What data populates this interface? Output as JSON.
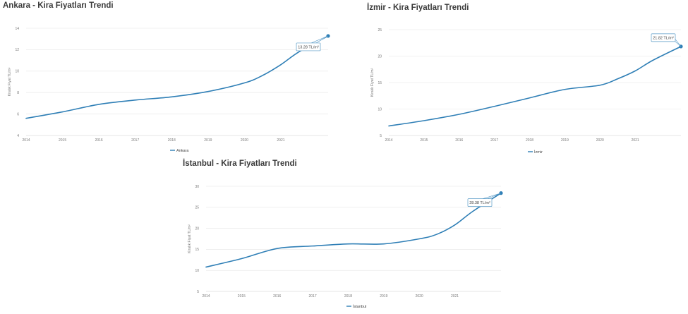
{
  "colors": {
    "line": "#2f7fb6",
    "grid": "#e6e6e6",
    "axis": "#cccccc"
  },
  "chart_data": [
    {
      "type": "line",
      "title": "Ankara - Kira Fiyatları Trendi",
      "xlabel": "",
      "ylabel": "Kiralık Fiyat TL/m²",
      "xlim": [
        2014,
        2022.3
      ],
      "ylim": [
        4,
        14
      ],
      "yticks": [
        4,
        6,
        8,
        10,
        12,
        14
      ],
      "xticks": [
        2014,
        2015,
        2016,
        2017,
        2018,
        2019,
        2020,
        2021
      ],
      "grid": true,
      "legend": "bottom",
      "series": [
        {
          "name": "Ankara",
          "x": [
            2014,
            2015,
            2016,
            2017,
            2018,
            2019,
            2020,
            2020.5,
            2021,
            2021.5,
            2022.3
          ],
          "y": [
            5.6,
            6.2,
            6.9,
            7.3,
            7.6,
            8.1,
            8.9,
            9.6,
            10.6,
            11.8,
            13.28
          ]
        }
      ],
      "annotation": {
        "text": "13.28 TL/m²",
        "x": 2022.3,
        "y": 13.28
      }
    },
    {
      "type": "line",
      "title": "İzmir - Kira Fiyatları Trendi",
      "xlabel": "",
      "ylabel": "Kiralık Fiyat TL/m²",
      "xlim": [
        2014,
        2022.3
      ],
      "ylim": [
        5,
        25
      ],
      "yticks": [
        5,
        10,
        15,
        20,
        25
      ],
      "xticks": [
        2014,
        2015,
        2016,
        2017,
        2018,
        2019,
        2020,
        2021
      ],
      "grid": true,
      "legend": "bottom",
      "series": [
        {
          "name": "İzmir",
          "x": [
            2014,
            2015,
            2016,
            2017,
            2018,
            2019,
            2020,
            2020.5,
            2021,
            2021.5,
            2022.3
          ],
          "y": [
            6.8,
            7.8,
            9.0,
            10.5,
            12.1,
            13.7,
            14.5,
            15.7,
            17.2,
            19.2,
            21.82
          ]
        }
      ],
      "annotation": {
        "text": "21.82 TL/m²",
        "x": 2022.3,
        "y": 21.82
      }
    },
    {
      "type": "line",
      "title": "İstanbul - Kira Fiyatları Trendi",
      "xlabel": "",
      "ylabel": "Kiralık Fiyat TL/m²",
      "xlim": [
        2014,
        2022.3
      ],
      "ylim": [
        5,
        30
      ],
      "yticks": [
        5,
        10,
        15,
        20,
        25,
        30
      ],
      "xticks": [
        2014,
        2015,
        2016,
        2017,
        2018,
        2019,
        2020,
        2021
      ],
      "grid": true,
      "legend": "bottom",
      "series": [
        {
          "name": "İstanbul",
          "x": [
            2014,
            2015,
            2016,
            2017,
            2018,
            2019,
            2020,
            2020.5,
            2021,
            2021.5,
            2022.3
          ],
          "y": [
            10.8,
            12.8,
            15.2,
            15.8,
            16.3,
            16.3,
            17.5,
            18.6,
            20.8,
            24.0,
            28.38
          ]
        }
      ],
      "annotation": {
        "text": "28.38 TL/m²",
        "x": 2022.3,
        "y": 28.38
      }
    }
  ]
}
